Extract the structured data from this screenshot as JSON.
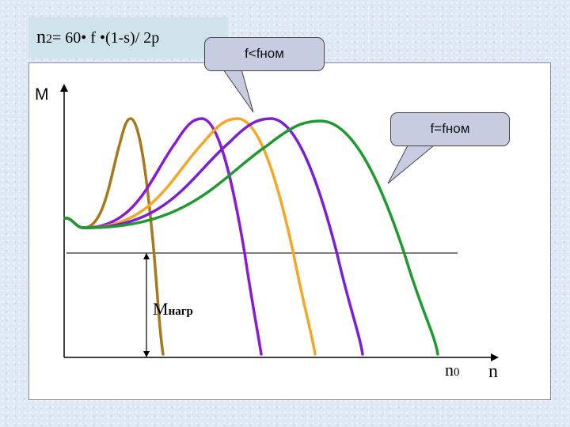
{
  "formula": {
    "lhs": "n",
    "lhs_sub": "2",
    "rhs": "= 60• f •(1-s)/ 2p"
  },
  "callouts": {
    "low_freq": "f<fном",
    "nominal": "f=fном"
  },
  "axes": {
    "y_label": "M",
    "x_label": "n"
  },
  "labels": {
    "load_main": "M",
    "load_sub": "нагр",
    "n0_main": "n",
    "n0_sub": "0"
  },
  "curves": [
    {
      "color": "#a8781a",
      "peak_n": 165,
      "peak_m": 150,
      "end_n": 206
    },
    {
      "color": "#8a1ad6",
      "peak_n": 255,
      "peak_m": 150,
      "end_n": 330
    },
    {
      "color": "#f5a623",
      "peak_n": 300,
      "peak_m": 150,
      "end_n": 398
    },
    {
      "color": "#7a1fd6",
      "peak_n": 342,
      "peak_m": 150,
      "end_n": 458
    },
    {
      "color": "#1e9a2e",
      "peak_n": 405,
      "peak_m": 153,
      "end_n": 553
    }
  ]
}
